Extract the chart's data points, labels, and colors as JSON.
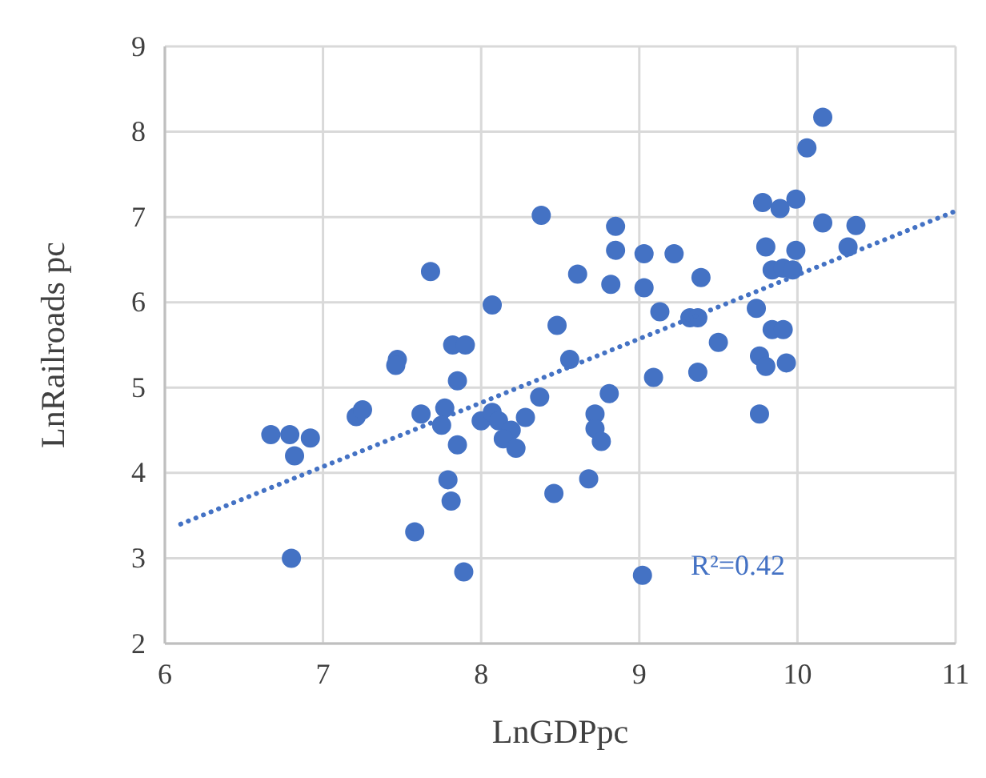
{
  "chart_data": {
    "type": "scatter",
    "xlabel": "LnGDPpc",
    "ylabel": "LnRailroads pc",
    "xlim": [
      6,
      11
    ],
    "ylim": [
      2,
      9
    ],
    "xticks": [
      6,
      7,
      8,
      9,
      10,
      11
    ],
    "yticks": [
      2,
      3,
      4,
      5,
      6,
      7,
      8,
      9
    ],
    "grid": true,
    "marker": "circle",
    "annotations": [
      "R²=0.42"
    ],
    "series": [
      {
        "color": "#4472c4",
        "x": [
          6.67,
          6.79,
          6.82,
          6.92,
          6.8,
          7.21,
          7.25,
          7.47,
          7.46,
          7.68,
          8.07,
          7.82,
          7.9,
          8.48,
          8.56,
          7.85,
          8.37,
          7.62,
          7.77,
          7.75,
          7.85,
          8.0,
          8.07,
          8.11,
          8.19,
          8.14,
          8.22,
          8.28,
          7.79,
          7.81,
          7.58,
          7.89,
          8.46,
          10.16,
          10.06,
          9.78,
          9.89,
          9.99,
          10.16,
          10.37,
          10.32,
          8.38,
          8.85,
          8.85,
          9.03,
          9.22,
          8.61,
          8.82,
          9.03,
          9.39,
          9.8,
          9.99,
          9.84,
          9.91,
          9.97,
          9.74,
          9.13,
          9.32,
          9.37,
          9.5,
          9.84,
          9.91,
          9.76,
          9.8,
          9.93,
          9.09,
          9.37,
          8.81,
          8.72,
          8.72,
          8.76,
          8.68,
          9.76,
          9.02
        ],
        "values": [
          4.45,
          4.45,
          4.2,
          4.41,
          3.0,
          4.66,
          4.74,
          5.33,
          5.26,
          6.36,
          5.97,
          5.5,
          5.5,
          5.73,
          5.33,
          5.08,
          4.89,
          4.69,
          4.76,
          4.56,
          4.33,
          4.61,
          4.71,
          4.61,
          4.5,
          4.4,
          4.29,
          4.65,
          3.92,
          3.67,
          3.31,
          2.84,
          3.76,
          8.17,
          7.81,
          7.17,
          7.1,
          7.21,
          6.93,
          6.9,
          6.65,
          7.02,
          6.89,
          6.61,
          6.57,
          6.57,
          6.33,
          6.21,
          6.17,
          6.29,
          6.65,
          6.61,
          6.38,
          6.4,
          6.38,
          5.93,
          5.89,
          5.82,
          5.82,
          5.53,
          5.68,
          5.68,
          5.37,
          5.25,
          5.29,
          5.12,
          5.18,
          4.93,
          4.69,
          4.52,
          4.37,
          3.93,
          4.69,
          2.8
        ]
      },
      {
        "type": "line",
        "color": "#4472c4",
        "line_style": "dotted",
        "marker": "none",
        "x": [
          6.1,
          11
        ],
        "values": [
          3.4,
          7.07
        ]
      }
    ]
  }
}
